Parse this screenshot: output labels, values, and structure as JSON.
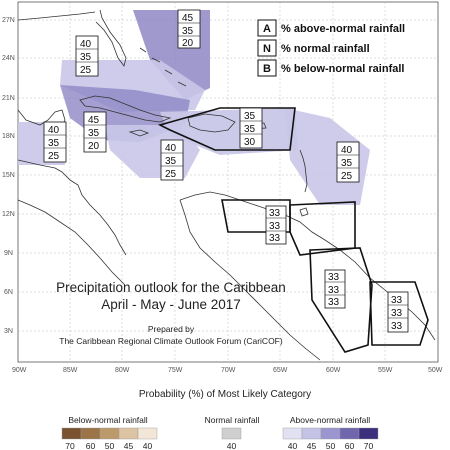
{
  "map": {
    "lat_ticks": [
      "27N",
      "24N",
      "21N",
      "18N",
      "15N",
      "12N",
      "9N",
      "6N",
      "3N"
    ],
    "lon_ticks": [
      "90W",
      "85W",
      "80W",
      "75W",
      "70W",
      "65W",
      "60W",
      "55W",
      "50W"
    ]
  },
  "legend": [
    {
      "letter": "A",
      "text": "% above-normal rainfall"
    },
    {
      "letter": "N",
      "text": "% normal rainfall"
    },
    {
      "letter": "B",
      "text": "% below-normal rainfall"
    }
  ],
  "forecast_boxes": [
    {
      "region": "florida",
      "values": [
        "45",
        "35",
        "20"
      ]
    },
    {
      "region": "bahamas-west",
      "values": [
        "40",
        "35",
        "25"
      ]
    },
    {
      "region": "cuba-jamaica",
      "values": [
        "45",
        "35",
        "20"
      ]
    },
    {
      "region": "belize-yucatan",
      "values": [
        "40",
        "35",
        "25"
      ]
    },
    {
      "region": "jamaica-south",
      "values": [
        "40",
        "35",
        "25"
      ]
    },
    {
      "region": "hispaniola-puerto-rico",
      "values": [
        "35",
        "35",
        "30"
      ]
    },
    {
      "region": "eastern-caribbean",
      "values": [
        "40",
        "35",
        "25"
      ]
    },
    {
      "region": "trinidad-venezuela",
      "values": [
        "33",
        "33",
        "33"
      ]
    },
    {
      "region": "guyana",
      "values": [
        "33",
        "33",
        "33"
      ]
    },
    {
      "region": "suriname-french-guiana",
      "values": [
        "33",
        "33",
        "33"
      ]
    }
  ],
  "title": {
    "line1": "Precipitation outlook for the Caribbean",
    "line2": "April - May - June 2017"
  },
  "prepared": {
    "line1": "Prepared by",
    "line2": "The Caribbean Regional Climate Outlook Forum (CariCOF)"
  },
  "colorbar": {
    "title": "Probability (%) of Most Likely Category",
    "below_label": "Below-normal rainfall",
    "normal_label": "Normal rainfall",
    "above_label": "Above-normal rainfall",
    "below_ticks": [
      "70",
      "60",
      "50",
      "45",
      "40"
    ],
    "normal_ticks": [
      "40"
    ],
    "above_ticks": [
      "40",
      "45",
      "50",
      "60",
      "70"
    ],
    "below_colors": [
      "#7a5230",
      "#9c7447",
      "#bd9a6c",
      "#dcc3a3",
      "#f2e6d6"
    ],
    "normal_color": "#cfcfcf",
    "above_colors": [
      "#e1e1f2",
      "#c4c3e6",
      "#9b96cf",
      "#6f66ad",
      "#3c2f7d"
    ]
  },
  "colors": {
    "above_40": "#c9c7e8",
    "above_45": "#8e87c6",
    "coast": "#333333",
    "grid": "#bbbbbb"
  }
}
